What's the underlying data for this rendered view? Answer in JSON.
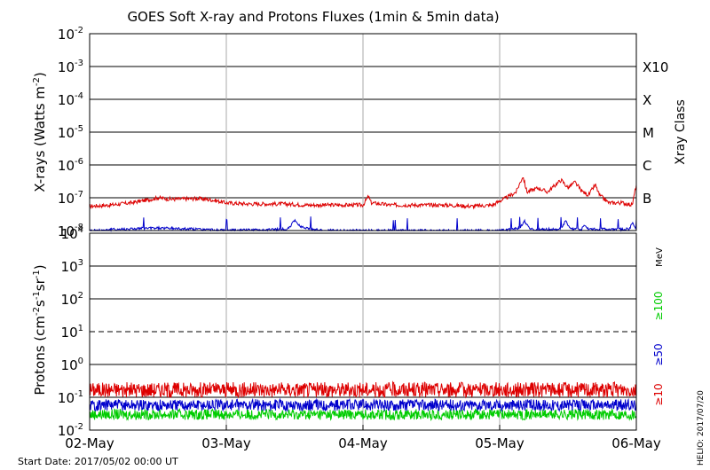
{
  "chart_data": [
    {
      "type": "line",
      "panel": "xray",
      "title": "GOES Soft X-ray and Protons Fluxes   (1min & 5min data)",
      "ylabel_main": "X-rays (Watts m",
      "ylabel_sup": "-2",
      "ylabel_close": ")",
      "yscale": "log",
      "ylim": [
        1e-08,
        0.01
      ],
      "y_ticks": [
        {
          "base": "10",
          "exp": "-2",
          "value": 0.01
        },
        {
          "base": "10",
          "exp": "-3",
          "value": 0.001
        },
        {
          "base": "10",
          "exp": "-4",
          "value": 0.0001
        },
        {
          "base": "10",
          "exp": "-5",
          "value": 1e-05
        },
        {
          "base": "10",
          "exp": "-6",
          "value": 1e-06
        },
        {
          "base": "10",
          "exp": "-7",
          "value": 1e-07
        },
        {
          "base": "10",
          "exp": "-8",
          "value": 1e-08
        }
      ],
      "right_axis_label": "Xray Class",
      "class_labels": [
        {
          "label": "X10",
          "value": 0.001
        },
        {
          "label": "X",
          "value": 0.0001
        },
        {
          "label": "M",
          "value": 1e-05
        },
        {
          "label": "C",
          "value": 1e-06
        },
        {
          "label": "B",
          "value": 1e-07
        }
      ],
      "grid": true,
      "x_unit": "days since 02-May 00:00 UT",
      "series": [
        {
          "color": "#dd0000",
          "x": [
            0,
            0.15,
            0.3,
            0.45,
            0.5,
            0.6,
            0.8,
            0.9,
            1.0,
            1.15,
            1.4,
            1.6,
            1.8,
            2.0,
            2.04,
            2.06,
            2.2,
            2.4,
            2.6,
            2.8,
            2.95,
            3.0,
            3.05,
            3.12,
            3.17,
            3.2,
            3.28,
            3.35,
            3.45,
            3.5,
            3.55,
            3.6,
            3.65,
            3.7,
            3.73,
            3.8,
            3.9,
            3.97,
            4.0
          ],
          "y": [
            5.5e-08,
            6e-08,
            7e-08,
            9e-08,
            1e-07,
            9e-08,
            9.5e-08,
            8.5e-08,
            7e-08,
            6.5e-08,
            6.5e-08,
            6e-08,
            6e-08,
            6e-08,
            1.1e-07,
            7e-08,
            6e-08,
            6e-08,
            6e-08,
            5.5e-08,
            6e-08,
            8e-08,
            1e-07,
            1.5e-07,
            4.5e-07,
            1.5e-07,
            2e-07,
            1.5e-07,
            3.5e-07,
            2e-07,
            3e-07,
            1.6e-07,
            1.2e-07,
            2.5e-07,
            1.2e-07,
            7e-08,
            7e-08,
            6e-08,
            2.5e-07
          ]
        },
        {
          "color": "#0000cc",
          "x": [
            0,
            0.2,
            0.5,
            0.8,
            1.0,
            1.45,
            1.5,
            1.55,
            1.7,
            2.0,
            2.5,
            3.0,
            3.15,
            3.18,
            3.22,
            3.45,
            3.48,
            3.52,
            3.6,
            3.62,
            3.65,
            3.95,
            3.97,
            4.0
          ],
          "y": [
            1e-08,
            1.1e-08,
            1.2e-08,
            1.1e-08,
            1e-08,
            1.1e-08,
            2e-08,
            1.3e-08,
            1e-08,
            1e-08,
            1e-08,
            1e-08,
            1.2e-08,
            2e-08,
            1.1e-08,
            1.1e-08,
            2e-08,
            1.1e-08,
            1.1e-08,
            1.6e-08,
            1.1e-08,
            1.1e-08,
            1.8e-08,
            1.1e-08
          ]
        }
      ]
    },
    {
      "type": "line",
      "panel": "protons",
      "ylabel_main": "Protons (cm",
      "ylabel_sup1": "-2",
      "ylabel_mid": "s",
      "ylabel_sup2": "-1",
      "ylabel_mid2": "sr",
      "ylabel_sup3": "-1",
      "ylabel_close": ")",
      "yscale": "log",
      "ylim": [
        0.01,
        10000
      ],
      "y_ticks": [
        {
          "base": "10",
          "exp": "4",
          "value": 10000
        },
        {
          "base": "10",
          "exp": "3",
          "value": 1000
        },
        {
          "base": "10",
          "exp": "2",
          "value": 100
        },
        {
          "base": "10",
          "exp": "1",
          "value": 10
        },
        {
          "base": "10",
          "exp": "0",
          "value": 1
        },
        {
          "base": "10",
          "exp": "-1",
          "value": 0.1
        },
        {
          "base": "10",
          "exp": "-2",
          "value": 0.01
        }
      ],
      "threshold": {
        "value": 10,
        "style": "dashed"
      },
      "unit_label": "MeV",
      "series": [
        {
          "name": "≥10",
          "color": "#dd0000",
          "level": 0.17,
          "spread": 1.7
        },
        {
          "name": "≥50",
          "color": "#0000cc",
          "level": 0.058,
          "spread": 1.5
        },
        {
          "name": "≥100",
          "color": "#00cc00",
          "level": 0.03,
          "spread": 1.45
        }
      ],
      "x_tick_labels": [
        "02-May",
        "03-May",
        "04-May",
        "05-May",
        "06-May"
      ],
      "x_ticks": [
        0,
        1,
        2,
        3,
        4
      ]
    }
  ],
  "footer": {
    "start_date": "Start Date: 2017/05/02 00:00 UT",
    "credit": "HELIO: 2017/07/20"
  }
}
